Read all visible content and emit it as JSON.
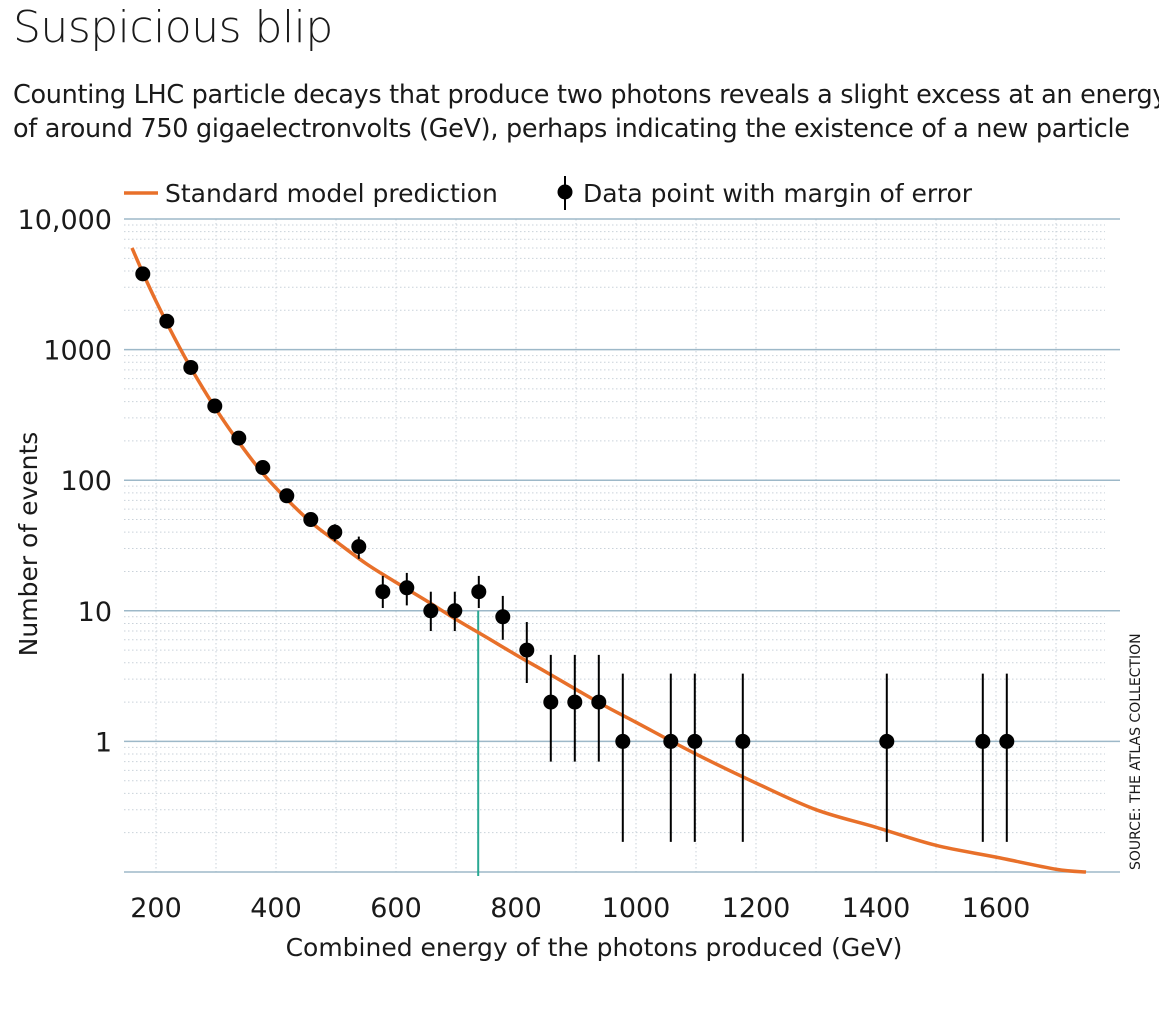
{
  "title": "Suspicious blip",
  "subtitle_lines": [
    "Counting LHC particle decays that produce two photons reveals a slight excess at an energy",
    "of around 750 gigaelectronvolts (GeV), perhaps indicating the existence of a new particle"
  ],
  "source": "SOURCE: THE ATLAS COLLECTION",
  "colors": {
    "prediction": "#e8702a",
    "data": "#000000",
    "highlight": "#2aa893",
    "major_grid": "#9db8c8",
    "minor_grid": "#c9d2da"
  },
  "chart_data": {
    "type": "scatter",
    "y_scale": "log",
    "xlabel": "Combined energy of the photons produced (GeV)",
    "ylabel": "Number of events",
    "xlim": [
      150,
      1760
    ],
    "ylim": [
      0.1,
      10000
    ],
    "x_ticks": [
      200,
      400,
      600,
      800,
      1000,
      1200,
      1400,
      1600
    ],
    "y_ticks": [
      {
        "value": 1,
        "label": "1"
      },
      {
        "value": 10,
        "label": "10"
      },
      {
        "value": 100,
        "label": "100"
      },
      {
        "value": 1000,
        "label": "1000"
      },
      {
        "value": 10000,
        "label": "10,000"
      }
    ],
    "legend": [
      {
        "key": "prediction",
        "label": "Standard model prediction"
      },
      {
        "key": "data",
        "label": "Data point with margin of error"
      }
    ],
    "highlight_x": 737,
    "prediction_curve": {
      "x": [
        160,
        180,
        200,
        230,
        260,
        300,
        340,
        380,
        420,
        460,
        500,
        550,
        600,
        650,
        700,
        750,
        800,
        850,
        900,
        950,
        1000,
        1100,
        1200,
        1300,
        1400,
        1500,
        1600,
        1700,
        1750
      ],
      "y": [
        6000,
        3700,
        2350,
        1250,
        700,
        350,
        190,
        110,
        70,
        47,
        34,
        23,
        16.5,
        12,
        8.6,
        6.3,
        4.6,
        3.4,
        2.5,
        1.85,
        1.4,
        0.8,
        0.48,
        0.3,
        0.22,
        0.16,
        0.13,
        0.105,
        0.1
      ]
    },
    "data_points": [
      {
        "x": 178,
        "y": 3800,
        "lo": 3800,
        "hi": 3800
      },
      {
        "x": 218,
        "y": 1650,
        "lo": 1650,
        "hi": 1650
      },
      {
        "x": 258,
        "y": 730,
        "lo": 730,
        "hi": 730
      },
      {
        "x": 298,
        "y": 370,
        "lo": 370,
        "hi": 370
      },
      {
        "x": 338,
        "y": 210,
        "lo": 210,
        "hi": 210
      },
      {
        "x": 378,
        "y": 125,
        "lo": 125,
        "hi": 125
      },
      {
        "x": 418,
        "y": 76,
        "lo": 76,
        "hi": 76
      },
      {
        "x": 458,
        "y": 50,
        "lo": 44,
        "hi": 56
      },
      {
        "x": 498,
        "y": 40,
        "lo": 34,
        "hi": 46
      },
      {
        "x": 538,
        "y": 31,
        "lo": 25,
        "hi": 37
      },
      {
        "x": 578,
        "y": 14,
        "lo": 10.5,
        "hi": 18.5
      },
      {
        "x": 618,
        "y": 15,
        "lo": 11,
        "hi": 19.5
      },
      {
        "x": 658,
        "y": 10,
        "lo": 7,
        "hi": 14
      },
      {
        "x": 698,
        "y": 10,
        "lo": 7,
        "hi": 14
      },
      {
        "x": 738,
        "y": 14,
        "lo": 10.5,
        "hi": 18.5
      },
      {
        "x": 778,
        "y": 9,
        "lo": 6,
        "hi": 13
      },
      {
        "x": 818,
        "y": 5,
        "lo": 2.8,
        "hi": 8.2
      },
      {
        "x": 858,
        "y": 2,
        "lo": 0.7,
        "hi": 4.6
      },
      {
        "x": 898,
        "y": 2,
        "lo": 0.7,
        "hi": 4.6
      },
      {
        "x": 938,
        "y": 2,
        "lo": 0.7,
        "hi": 4.6
      },
      {
        "x": 978,
        "y": 1,
        "lo": 0.17,
        "hi": 3.3
      },
      {
        "x": 1058,
        "y": 1,
        "lo": 0.17,
        "hi": 3.3
      },
      {
        "x": 1098,
        "y": 1,
        "lo": 0.17,
        "hi": 3.3
      },
      {
        "x": 1178,
        "y": 1,
        "lo": 0.17,
        "hi": 3.3
      },
      {
        "x": 1418,
        "y": 1,
        "lo": 0.17,
        "hi": 3.3
      },
      {
        "x": 1578,
        "y": 1,
        "lo": 0.17,
        "hi": 3.3
      },
      {
        "x": 1618,
        "y": 1,
        "lo": 0.17,
        "hi": 3.3
      }
    ]
  }
}
